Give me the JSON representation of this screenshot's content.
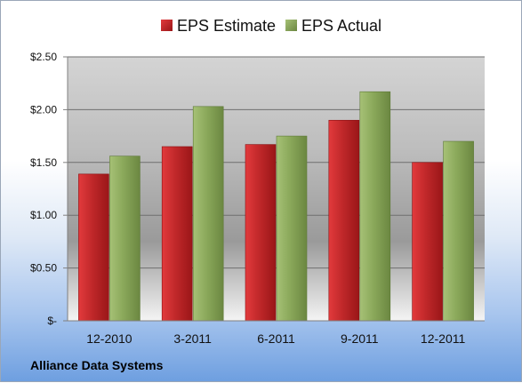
{
  "company": "Alliance Data Systems",
  "colors": {
    "estimate": "#c0282a",
    "actual": "#8aa85a"
  },
  "chart_data": {
    "type": "bar",
    "title": "",
    "xlabel": "",
    "ylabel": "",
    "categories": [
      "12-2010",
      "3-2011",
      "6-2011",
      "9-2011",
      "12-2011"
    ],
    "series": [
      {
        "name": "EPS Estimate",
        "values": [
          1.39,
          1.65,
          1.67,
          1.9,
          1.5
        ]
      },
      {
        "name": "EPS Actual",
        "values": [
          1.56,
          2.03,
          1.75,
          2.17,
          1.7
        ]
      }
    ],
    "ylim": [
      0,
      2.5
    ],
    "yticks": [
      0,
      0.5,
      1.0,
      1.5,
      2.0,
      2.5
    ],
    "ytick_labels": [
      "$-",
      "$0.50",
      "$1.00",
      "$1.50",
      "$2.00",
      "$2.50"
    ],
    "legend": "top",
    "grid": true
  }
}
